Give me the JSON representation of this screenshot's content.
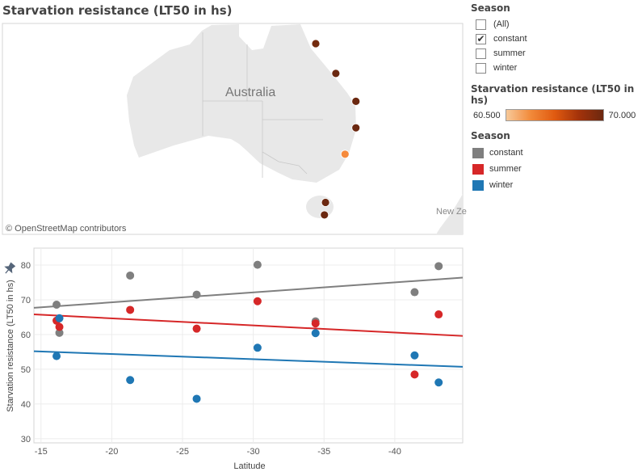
{
  "map": {
    "title": "Starvation resistance (LT50 in hs)",
    "country_label": "Australia",
    "nz_label": "New Ze",
    "attribution": "© OpenStreetMap contributors",
    "points": [
      {
        "lat": -16.1,
        "lon": 145.8,
        "value": 68.6
      },
      {
        "lat": -21.3,
        "lon": 149.5,
        "value": 77.0
      },
      {
        "lat": -26.0,
        "lon": 153.2,
        "value": 71.5
      },
      {
        "lat": -30.3,
        "lon": 153.2,
        "value": 80.1
      },
      {
        "lat": -34.4,
        "lon": 151.2,
        "value": 63.8
      },
      {
        "lat": -41.4,
        "lon": 147.6,
        "value": 72.2
      },
      {
        "lat": -43.1,
        "lon": 147.4,
        "value": 79.7
      }
    ],
    "color_range": [
      60.5,
      70.0
    ],
    "color_low": "#f7c99a",
    "color_high": "#6b2810"
  },
  "filter": {
    "title": "Season",
    "items": [
      {
        "label": "(All)",
        "checked": false
      },
      {
        "label": "constant",
        "checked": true
      },
      {
        "label": "summer",
        "checked": false
      },
      {
        "label": "winter",
        "checked": false
      }
    ]
  },
  "color_legend": {
    "title": "Starvation resistance (LT50 in hs)",
    "min_label": "60.500",
    "max_label": "70.000"
  },
  "season_legend": {
    "title": "Season",
    "items": [
      {
        "label": "constant",
        "color": "#7f7f7f"
      },
      {
        "label": "summer",
        "color": "#d62728"
      },
      {
        "label": "winter",
        "color": "#1f77b4"
      }
    ]
  },
  "chart_data": {
    "type": "scatter",
    "title": "",
    "xlabel": "Latitude",
    "ylabel": "Starvation resistance (LT50 in hs)",
    "xlim": [
      -14.5,
      -44.8
    ],
    "ylim": [
      28.8,
      84.9
    ],
    "xticks": [
      -15,
      -20,
      -25,
      -30,
      -35,
      -40
    ],
    "yticks": [
      30,
      40,
      50,
      60,
      70,
      80
    ],
    "grid": true,
    "x": [
      -16.1,
      -16.3,
      -21.3,
      -26.0,
      -30.3,
      -34.4,
      -41.4,
      -43.1
    ],
    "series": [
      {
        "name": "constant",
        "color": "#7f7f7f",
        "values": [
          68.6,
          60.5,
          77.0,
          71.5,
          80.1,
          63.8,
          72.2,
          79.7
        ],
        "trend": [
          67.7,
          76.4
        ]
      },
      {
        "name": "summer",
        "color": "#d62728",
        "values": [
          64.0,
          62.2,
          67.1,
          61.7,
          69.6,
          63.2,
          48.5,
          65.8
        ],
        "trend": [
          65.8,
          59.6
        ]
      },
      {
        "name": "winter",
        "color": "#1f77b4",
        "values": [
          53.8,
          64.7,
          46.9,
          41.5,
          56.2,
          60.4,
          54.0,
          46.2
        ],
        "trend": [
          55.2,
          50.7
        ]
      }
    ]
  }
}
